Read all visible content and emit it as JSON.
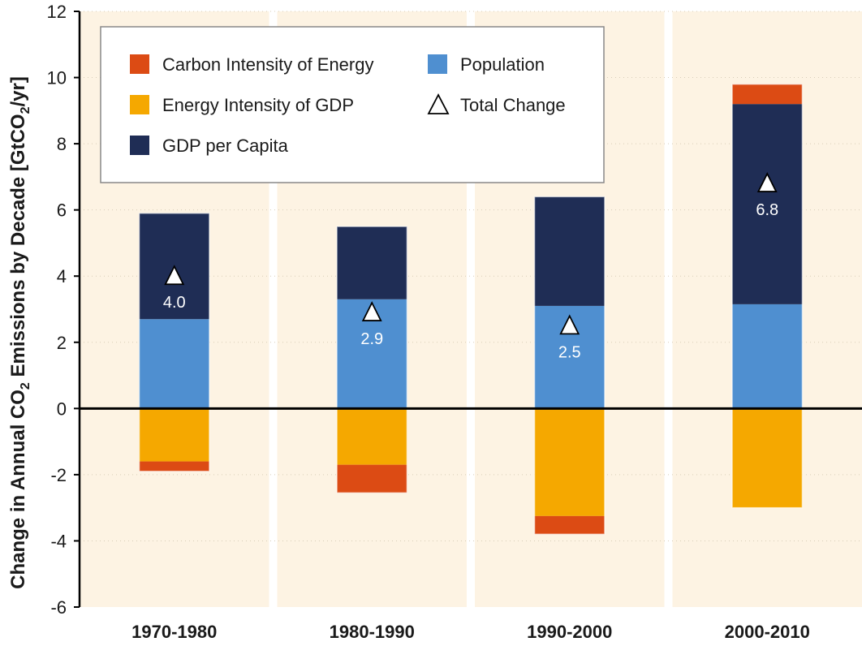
{
  "chart_data": {
    "type": "bar",
    "stacked": true,
    "categories": [
      "1970-1980",
      "1980-1990",
      "1990-2000",
      "2000-2010"
    ],
    "ylabel": "Change in Annual CO2 Emissions by Decade [GtCO2/yr]",
    "ylabel_parts": {
      "a": "Change in Annual CO",
      "sub1": "2",
      "b": " Emissions by Decade [GtCO",
      "sub2": "2",
      "c": "/yr]"
    },
    "ylim": [
      -6,
      12
    ],
    "yticks": [
      -6,
      -4,
      -2,
      0,
      2,
      4,
      6,
      8,
      10,
      12
    ],
    "series": [
      {
        "name": "Population",
        "color": "#4f8fd0",
        "values": [
          2.7,
          3.3,
          3.1,
          3.15
        ]
      },
      {
        "name": "GDP per Capita",
        "color": "#1f2d55",
        "values": [
          3.2,
          2.2,
          3.3,
          6.05
        ]
      },
      {
        "name": "Energy Intensity of GDP",
        "color": "#f5a800",
        "values": [
          -1.6,
          -1.7,
          -3.25,
          -3.0
        ]
      },
      {
        "name": "Carbon Intensity of Energy",
        "color": "#dc4b14",
        "values": [
          -0.3,
          -0.85,
          -0.55,
          0.6
        ]
      }
    ],
    "total_change": {
      "name": "Total Change",
      "values": [
        4.0,
        2.9,
        2.5,
        6.8
      ],
      "labels": [
        "4.0",
        "2.9",
        "2.5",
        "6.8"
      ]
    },
    "legend": {
      "placement": "top-left",
      "items": [
        {
          "label": "Carbon Intensity of Energy",
          "color": "#dc4b14",
          "marker": "square"
        },
        {
          "label": "Population",
          "color": "#4f8fd0",
          "marker": "square"
        },
        {
          "label": "Energy Intensity of GDP",
          "color": "#f5a800",
          "marker": "square"
        },
        {
          "label": "Total Change",
          "color": "#ffffff",
          "marker": "triangle"
        },
        {
          "label": "GDP per Capita",
          "color": "#1f2d55",
          "marker": "square"
        }
      ]
    },
    "colors": {
      "panel_background": "#fdf3e3",
      "zero_line": "#000000"
    },
    "grid": "horizontal dotted"
  }
}
